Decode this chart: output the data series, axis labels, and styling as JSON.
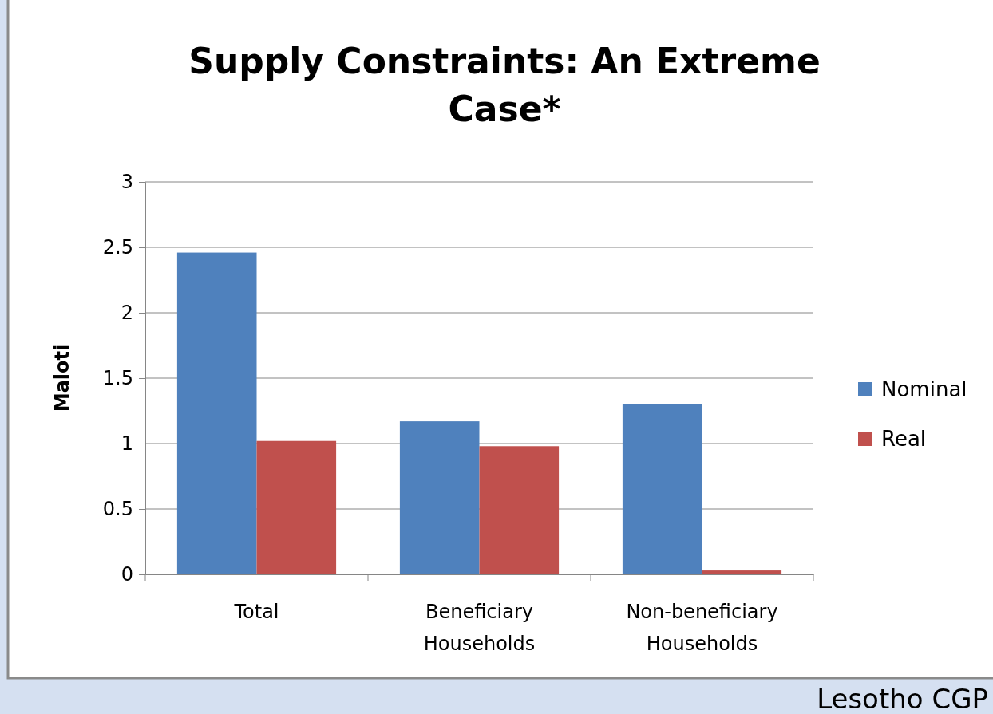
{
  "chart_data": {
    "type": "bar",
    "title": "Supply Constraints: An Extreme Case*",
    "ylabel": "Maloti",
    "categories": [
      "Total",
      "Beneficiary Households",
      "Non-beneficiary Households"
    ],
    "series": [
      {
        "name": "Nominal",
        "color": "#4f81bd",
        "values": [
          2.46,
          1.17,
          1.3
        ]
      },
      {
        "name": "Real",
        "color": "#c0504d",
        "values": [
          1.02,
          0.98,
          0.03
        ]
      }
    ],
    "ylim": [
      0,
      3
    ],
    "yticks": [
      0,
      {
        "value": 0.5,
        "label": "0.5"
      },
      1,
      {
        "value": 1.5,
        "label": "1.5"
      },
      2,
      {
        "value": 2.5,
        "label": "2.5"
      },
      3
    ],
    "grid": "y",
    "legend": "right",
    "annotations": [
      "Lesotho CGP"
    ]
  }
}
